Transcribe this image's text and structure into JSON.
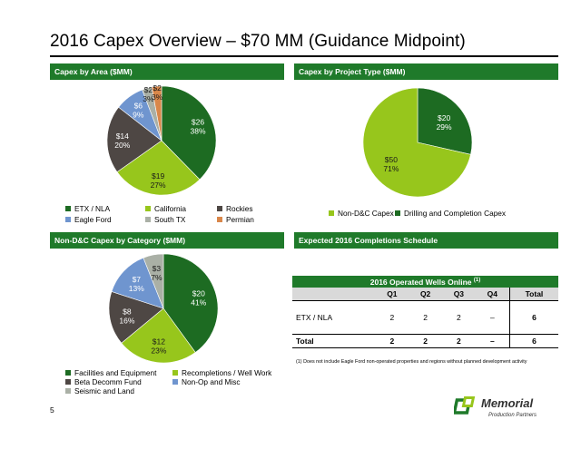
{
  "title": "2016 Capex Overview – $70 MM (Guidance Midpoint)",
  "page_number": "5",
  "colors": {
    "header_green": "#1f7a2a"
  },
  "chart_data": [
    {
      "type": "pie",
      "title": "Capex by Area ($MM)",
      "slices": [
        {
          "name": "ETX / NLA",
          "value": 26,
          "label": "$26",
          "pct": "38%",
          "color": "#1d6b22"
        },
        {
          "name": "California",
          "value": 19,
          "label": "$19",
          "pct": "27%",
          "color": "#97c61c"
        },
        {
          "name": "Rockies",
          "value": 14,
          "label": "$14",
          "pct": "20%",
          "color": "#4e4744"
        },
        {
          "name": "Eagle Ford",
          "value": 6,
          "label": "$6",
          "pct": "9%",
          "color": "#6f95cf"
        },
        {
          "name": "South TX",
          "value": 2,
          "label": "$2",
          "pct": "3%",
          "color": "#aab0a6"
        },
        {
          "name": "Permian",
          "value": 2,
          "label": "$2",
          "pct": "3%",
          "color": "#d9874a"
        }
      ]
    },
    {
      "type": "pie",
      "title": "Capex by Project Type ($MM)",
      "slices": [
        {
          "name": "Drilling and Completion Capex",
          "value": 20,
          "label": "$20",
          "pct": "29%",
          "color": "#1d6b22"
        },
        {
          "name": "Non-D&C Capex",
          "value": 50,
          "label": "$50",
          "pct": "71%",
          "color": "#97c61c"
        }
      ]
    },
    {
      "type": "pie",
      "title": "Non-D&C Capex by Category ($MM)",
      "slices": [
        {
          "name": "Facilities and Equipment",
          "value": 20,
          "label": "$20",
          "pct": "41%",
          "color": "#1d6b22"
        },
        {
          "name": "Recompletions / Well Work",
          "value": 12,
          "label": "$12",
          "pct": "23%",
          "color": "#97c61c"
        },
        {
          "name": "Beta Decomm Fund",
          "value": 8,
          "label": "$8",
          "pct": "16%",
          "color": "#4e4744"
        },
        {
          "name": "Non-Op and Misc",
          "value": 7,
          "label": "$7",
          "pct": "13%",
          "color": "#6f95cf"
        },
        {
          "name": "Seismic and Land",
          "value": 3,
          "label": "$3",
          "pct": "7%",
          "color": "#aab0a6"
        }
      ]
    }
  ],
  "legends": {
    "area": [
      "ETX / NLA",
      "California",
      "Rockies",
      "Eagle Ford",
      "South TX",
      "Permian"
    ],
    "project": [
      "Non-D&C Capex",
      "Drilling and Completion Capex"
    ],
    "category": [
      "Facilities and Equipment",
      "Recompletions / Well Work",
      "Beta Decomm Fund",
      "Non-Op and Misc",
      "Seismic and Land"
    ]
  },
  "schedule": {
    "header": "Expected 2016 Completions Schedule",
    "caption": "2016 Operated Wells Online",
    "caption_note": "(1)",
    "columns": [
      "Q1",
      "Q2",
      "Q3",
      "Q4",
      "Total"
    ],
    "rows": [
      {
        "label": "ETX / NLA",
        "values": [
          "2",
          "2",
          "2",
          "–",
          "6"
        ]
      }
    ],
    "total": {
      "label": "Total",
      "values": [
        "2",
        "2",
        "2",
        "–",
        "6"
      ]
    },
    "footnote": "(1)    Does not include Eagle Ford non-operated properties and regions without planned development activity"
  },
  "logo": {
    "name": "Memorial",
    "sub": "Production Partners"
  }
}
